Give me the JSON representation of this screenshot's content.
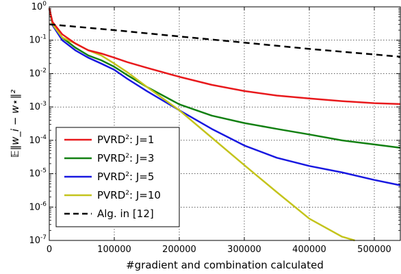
{
  "chart_data": {
    "type": "line",
    "title": "",
    "xlabel": "#gradient and combination calculated",
    "ylabel": "𝔼‖w_i − w⋆‖²",
    "xlim": [
      0,
      540000
    ],
    "ylim": [
      1e-07,
      1
    ],
    "yscale": "log",
    "grid": true,
    "legend_position": "lower-left",
    "x_ticks": [
      0,
      100000,
      200000,
      300000,
      400000,
      500000
    ],
    "y_ticks": [
      {
        "value": 1,
        "base": "10",
        "exp": "0"
      },
      {
        "value": 0.1,
        "base": "10",
        "exp": "-1"
      },
      {
        "value": 0.01,
        "base": "10",
        "exp": "-2"
      },
      {
        "value": 0.001,
        "base": "10",
        "exp": "-3"
      },
      {
        "value": 0.0001,
        "base": "10",
        "exp": "-4"
      },
      {
        "value": 1e-05,
        "base": "10",
        "exp": "-5"
      },
      {
        "value": 1e-06,
        "base": "10",
        "exp": "-6"
      },
      {
        "value": 1e-07,
        "base": "10",
        "exp": "-7"
      }
    ],
    "series": [
      {
        "name": "PVRD²: J=1",
        "label_base": "PVRD",
        "label_sup": "2",
        "label_rest": ": J=1",
        "color": "#e8191c",
        "dash": "solid",
        "x": [
          0,
          5000,
          20000,
          40000,
          60000,
          80000,
          100000,
          120000,
          150000,
          200000,
          250000,
          300000,
          350000,
          400000,
          450000,
          500000,
          540000
        ],
        "y": [
          0.9,
          0.35,
          0.15,
          0.08,
          0.05,
          0.04,
          0.03,
          0.022,
          0.015,
          0.008,
          0.0046,
          0.003,
          0.0022,
          0.0018,
          0.0015,
          0.0013,
          0.00122
        ]
      },
      {
        "name": "PVRD²: J=3",
        "label_base": "PVRD",
        "label_sup": "2",
        "label_rest": ": J=3",
        "color": "#128012",
        "dash": "solid",
        "x": [
          0,
          5000,
          20000,
          40000,
          60000,
          80000,
          100000,
          120000,
          150000,
          200000,
          250000,
          300000,
          350000,
          400000,
          450000,
          500000,
          540000
        ],
        "y": [
          0.9,
          0.3,
          0.12,
          0.06,
          0.035,
          0.025,
          0.016,
          0.009,
          0.004,
          0.0012,
          0.00055,
          0.00033,
          0.00022,
          0.00015,
          0.0001,
          7.5e-05,
          6e-05
        ]
      },
      {
        "name": "PVRD²: J=5",
        "label_base": "PVRD",
        "label_sup": "2",
        "label_rest": ": J=5",
        "color": "#1818e0",
        "dash": "solid",
        "x": [
          0,
          5000,
          20000,
          40000,
          60000,
          80000,
          100000,
          120000,
          150000,
          200000,
          250000,
          300000,
          350000,
          400000,
          450000,
          500000,
          540000
        ],
        "y": [
          0.9,
          0.28,
          0.1,
          0.05,
          0.03,
          0.02,
          0.013,
          0.007,
          0.003,
          0.0008,
          0.00022,
          7e-05,
          3e-05,
          1.7e-05,
          1.1e-05,
          6.5e-06,
          4.5e-06
        ]
      },
      {
        "name": "PVRD²: J=10",
        "label_base": "PVRD",
        "label_sup": "2",
        "label_rest": ": J=10",
        "color": "#c4c41c",
        "dash": "solid",
        "x": [
          0,
          5000,
          20000,
          40000,
          60000,
          80000,
          100000,
          120000,
          150000,
          200000,
          250000,
          300000,
          350000,
          400000,
          450000,
          470000
        ],
        "y": [
          0.9,
          0.3,
          0.12,
          0.08,
          0.05,
          0.035,
          0.02,
          0.011,
          0.004,
          0.0008,
          0.00012,
          1.8e-05,
          2.8e-06,
          4.5e-07,
          1.3e-07,
          1e-07
        ]
      },
      {
        "name": "Alg. in [12]",
        "label_base": "Alg. in [12]",
        "label_sup": "",
        "label_rest": "",
        "color": "#000000",
        "dash": "dashed",
        "x": [
          0,
          100000,
          200000,
          300000,
          400000,
          540000
        ],
        "y": [
          0.3,
          0.2,
          0.13,
          0.085,
          0.055,
          0.032
        ]
      }
    ]
  }
}
